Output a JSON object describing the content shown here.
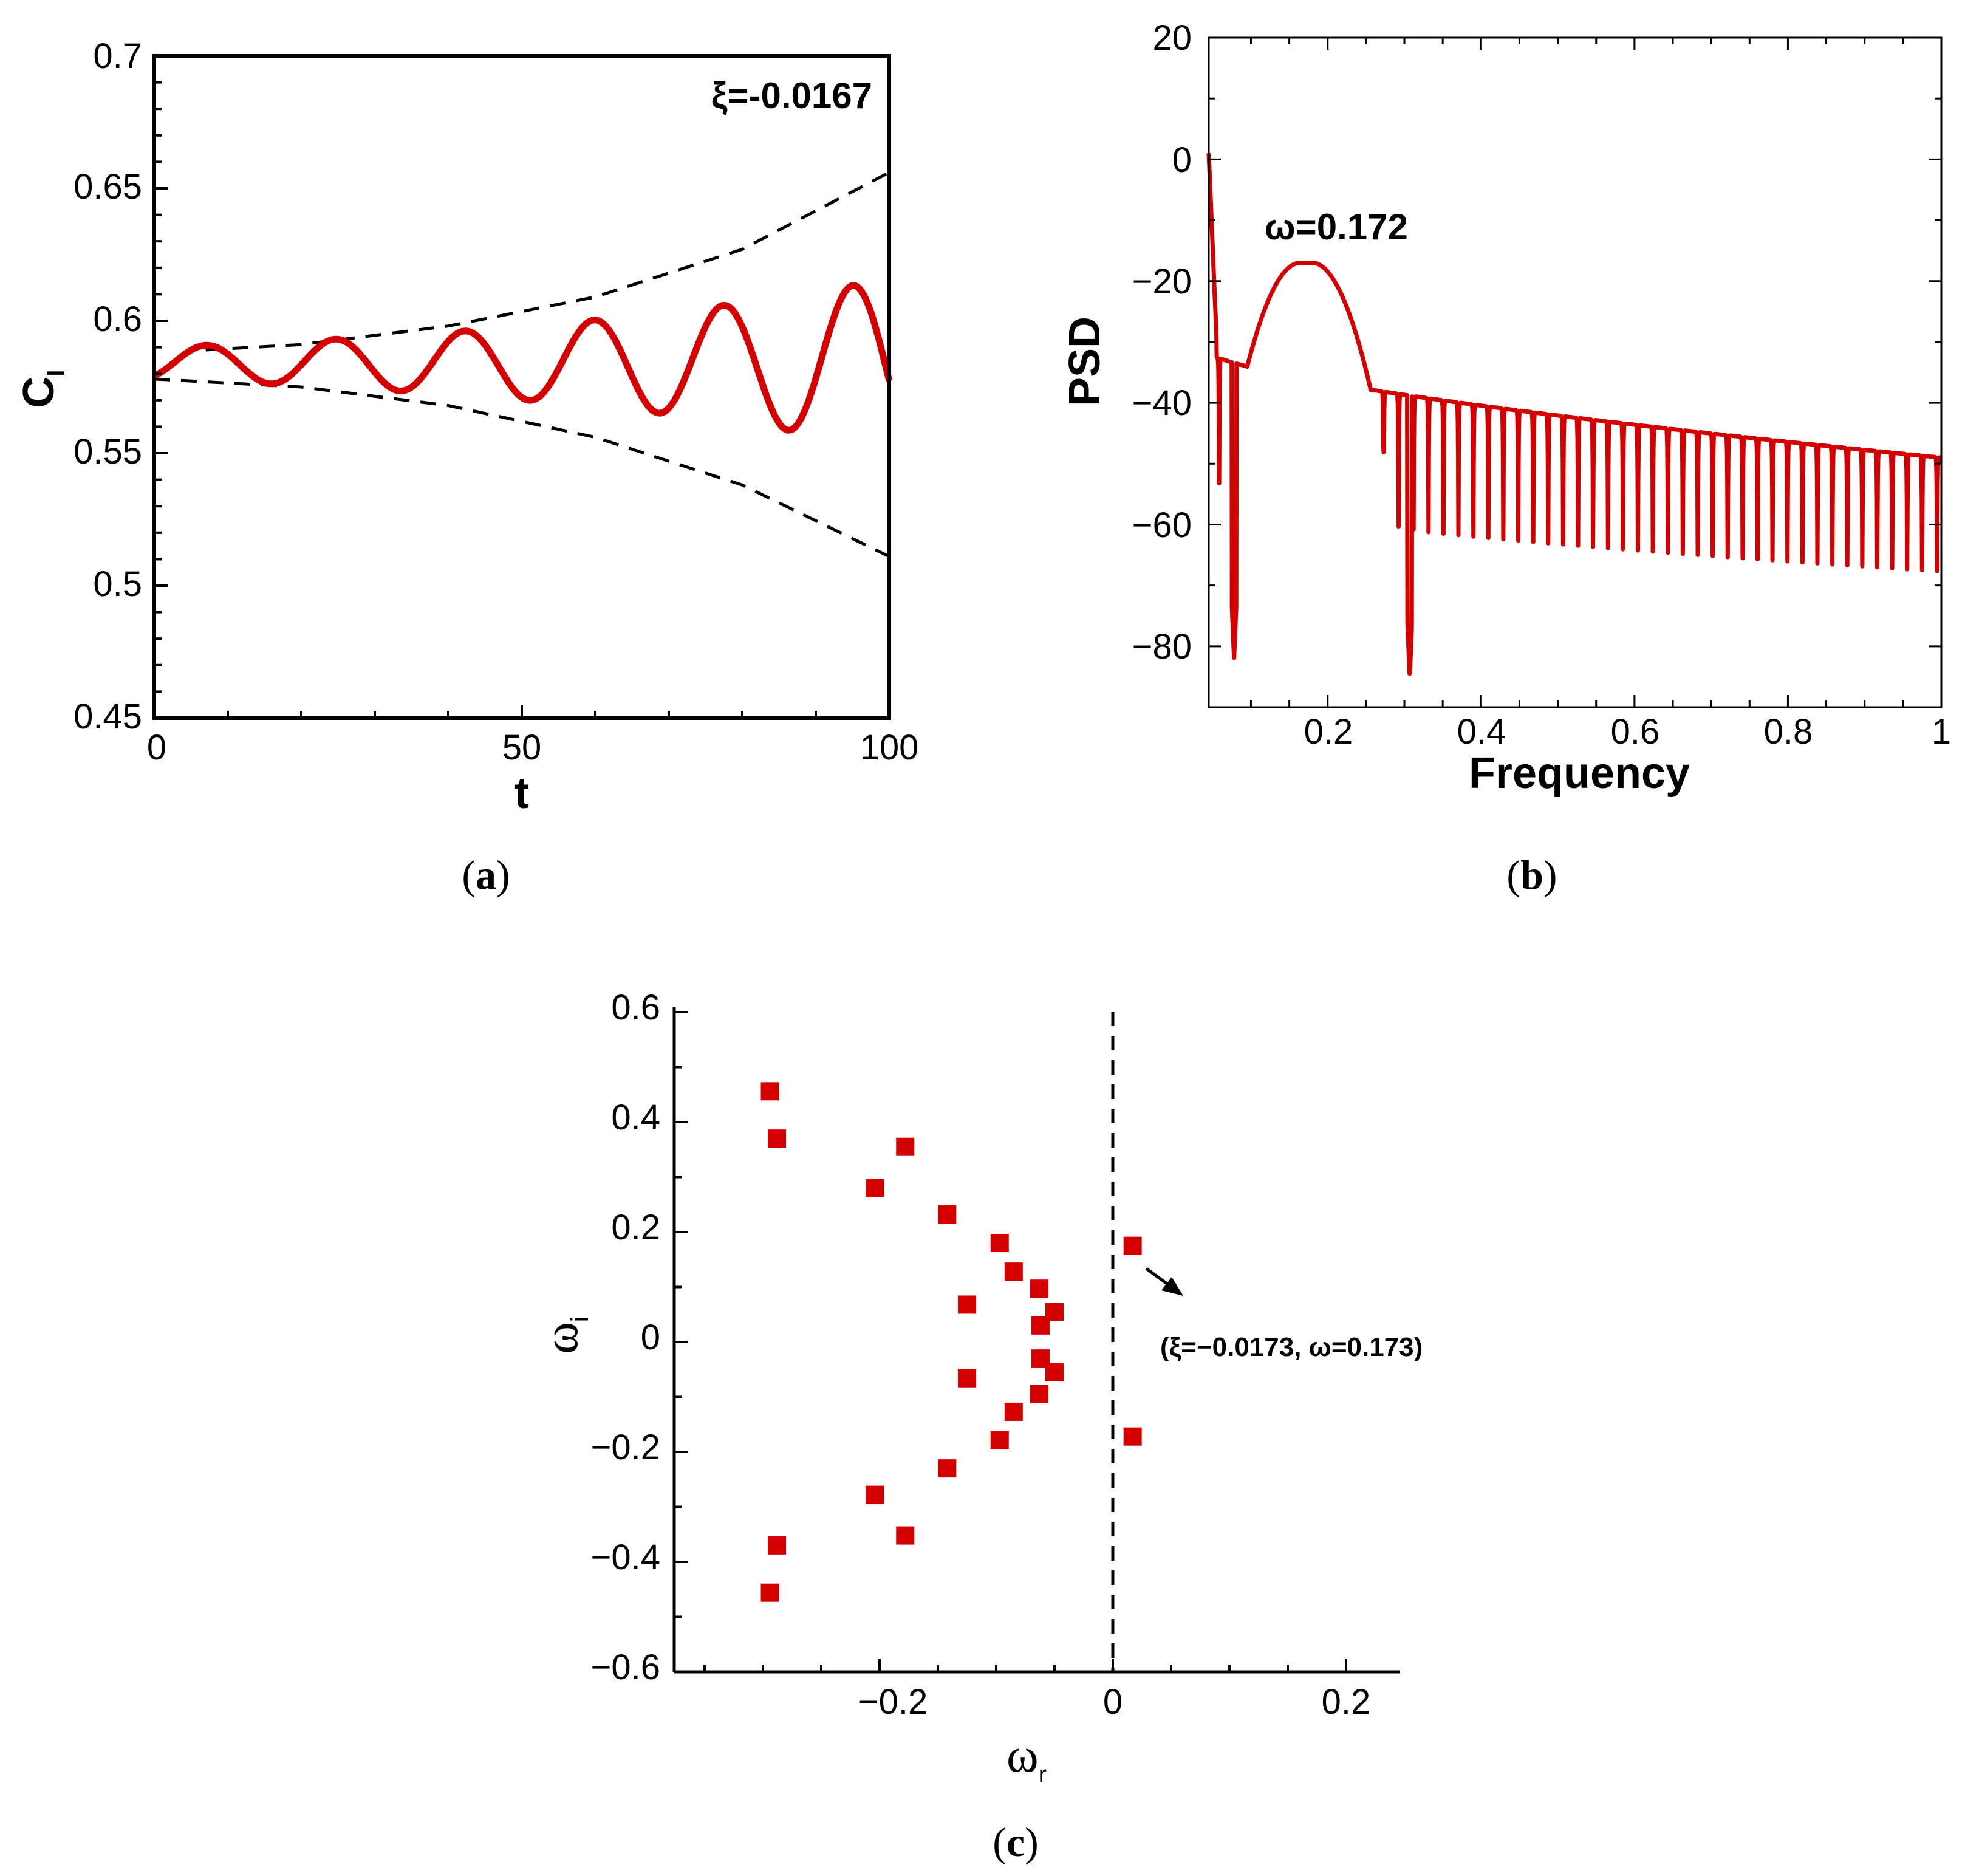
{
  "chart_data": [
    {
      "panel": "a",
      "type": "line",
      "caption_open": "(",
      "caption_letter": "a",
      "caption_close": ")",
      "xlabel": "t",
      "ylabel": "C",
      "ylabel_sub": "l",
      "annotation": "ξ=-0.0167",
      "xlim": [
        0,
        100
      ],
      "ylim": [
        0.45,
        0.7
      ],
      "xticks": [
        "0",
        "50",
        "100"
      ],
      "yticks": [
        "0.45",
        "0.5",
        "0.55",
        "0.6",
        "0.65",
        "0.7"
      ],
      "signal": {
        "mean": 0.584,
        "amp0": 0.006,
        "growth": 0.0167,
        "period": 17.6,
        "phase_t": 7.0
      },
      "envelope_upper": {
        "x": [
          7,
          20,
          40,
          60,
          80,
          100
        ],
        "y": [
          0.589,
          0.591,
          0.598,
          0.609,
          0.627,
          0.656
        ]
      },
      "envelope_lower": {
        "x": [
          0,
          20,
          40,
          60,
          80,
          100
        ],
        "y": [
          0.578,
          0.575,
          0.568,
          0.556,
          0.538,
          0.511
        ]
      },
      "colors": {
        "line": "#d40000",
        "envelope": "#000000"
      }
    },
    {
      "panel": "b",
      "type": "line",
      "caption_open": "(",
      "caption_letter": "b",
      "caption_close": ")",
      "xlabel": "Frequency",
      "ylabel": "PSD",
      "annotation": "ω=0.172",
      "xlim": [
        0.045,
        1.0
      ],
      "ylim": [
        -90,
        20
      ],
      "xticks": [
        "0.2",
        "0.4",
        "0.6",
        "0.8",
        "1"
      ],
      "yticks": [
        "20",
        "0",
        "−20",
        "−40",
        "−60",
        "−80"
      ],
      "peak": {
        "x": 0.172,
        "y": -17
      },
      "colors": {
        "line": "#d40000"
      }
    },
    {
      "panel": "c",
      "type": "scatter",
      "caption_open": "(",
      "caption_letter": "c",
      "caption_close": ")",
      "xlabel": "ω",
      "xlabel_sub": "r",
      "ylabel": "ω",
      "ylabel_sub": "i",
      "annotation": "(ξ=−0.0173, ω=0.173)",
      "xlim": [
        -0.37,
        0.245
      ],
      "ylim": [
        -0.6,
        0.6
      ],
      "xticks": [
        "−0.2",
        "0",
        "0.2"
      ],
      "yticks": [
        "0.6",
        "0.4",
        "0.2",
        "0",
        "−0.2",
        "−0.4",
        "−0.6"
      ],
      "points": [
        [
          -0.294,
          0.456
        ],
        [
          -0.288,
          0.37
        ],
        [
          -0.178,
          0.355
        ],
        [
          -0.204,
          0.28
        ],
        [
          -0.142,
          0.232
        ],
        [
          -0.097,
          0.18
        ],
        [
          -0.085,
          0.128
        ],
        [
          -0.063,
          0.097
        ],
        [
          -0.125,
          0.068
        ],
        [
          -0.05,
          0.055
        ],
        [
          -0.062,
          0.03
        ],
        [
          0.017,
          0.175
        ],
        [
          -0.294,
          -0.456
        ],
        [
          -0.288,
          -0.37
        ],
        [
          -0.178,
          -0.352
        ],
        [
          -0.204,
          -0.278
        ],
        [
          -0.142,
          -0.23
        ],
        [
          -0.097,
          -0.178
        ],
        [
          -0.085,
          -0.127
        ],
        [
          -0.063,
          -0.095
        ],
        [
          -0.125,
          -0.066
        ],
        [
          -0.05,
          -0.055
        ],
        [
          -0.062,
          -0.03
        ],
        [
          0.017,
          -0.172
        ]
      ],
      "colors": {
        "marker": "#d40000",
        "zero_line": "#000000"
      }
    }
  ]
}
